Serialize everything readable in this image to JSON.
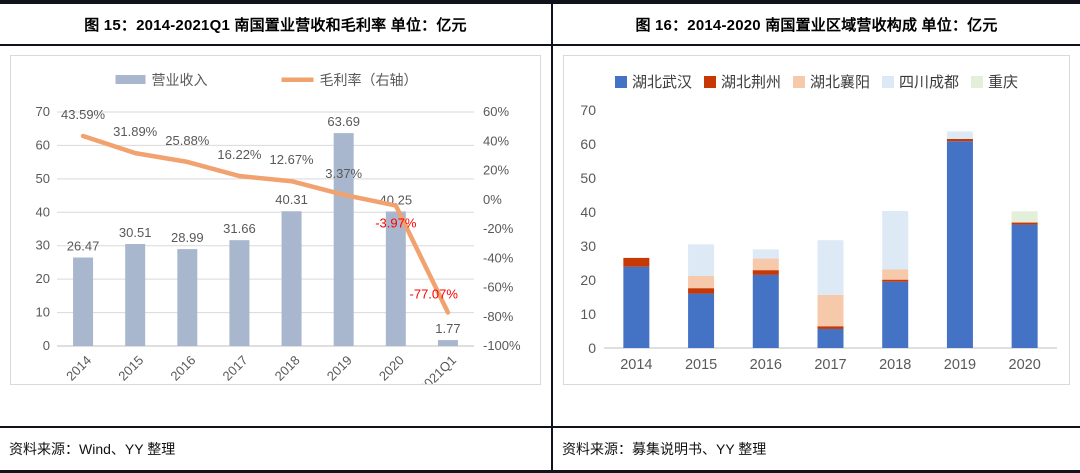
{
  "left_panel": {
    "title": "图 15：2014-2021Q1 南国置业营收和毛利率 单位：亿元",
    "footer": "资料来源：Wind、YY 整理"
  },
  "right_panel": {
    "title": "图 16：2014-2020 南国置业区域营收构成 单位：亿元",
    "footer": "资料来源：募集说明书、YY 整理"
  },
  "colors": {
    "revenue_bar": "#a9b7ce",
    "margin_line": "#f2a26e",
    "negative_label": "#ff0000",
    "axis_text": "#595959",
    "gridline": "#d9d9d9",
    "baseline": "#bfbfbf",
    "frame": "#10131c"
  },
  "chart_data": [
    {
      "type": "bar",
      "title": "2014-2021Q1 南国置业营收和毛利率（亿元）",
      "categories": [
        "2014",
        "2015",
        "2016",
        "2017",
        "2018",
        "2019",
        "2020",
        "2021Q1"
      ],
      "series": [
        {
          "name": "营业收入",
          "kind": "bar",
          "axis": "left",
          "color": "#a9b7ce",
          "values": [
            26.47,
            30.51,
            28.99,
            31.66,
            40.31,
            63.69,
            40.25,
            1.77
          ],
          "labels": [
            "26.47",
            "30.51",
            "28.99",
            "31.66",
            "40.31",
            "63.69",
            "40.25",
            "1.77"
          ]
        },
        {
          "name": "毛利率（右轴）",
          "kind": "line",
          "axis": "right",
          "color": "#f2a26e",
          "values": [
            43.59,
            31.89,
            25.88,
            16.22,
            12.67,
            3.37,
            -3.97,
            -77.07
          ],
          "labels": [
            "43.59%",
            "31.89%",
            "25.88%",
            "16.22%",
            "12.67%",
            "3.37%",
            "-3.97%",
            "-77.07%"
          ],
          "label_colors": [
            "#595959",
            "#595959",
            "#595959",
            "#595959",
            "#595959",
            "#595959",
            "#ff0000",
            "#ff0000"
          ],
          "label_placement": [
            "above",
            "above",
            "above",
            "above",
            "above",
            "above",
            "below",
            "above-left"
          ]
        }
      ],
      "left_axis": {
        "min": 0,
        "max": 70,
        "step": 10,
        "suffix": ""
      },
      "right_axis": {
        "min": -100,
        "max": 60,
        "step": 20,
        "suffix": "%"
      },
      "grid": true,
      "legend_position": "top"
    },
    {
      "type": "bar",
      "subtype": "stacked",
      "title": "2014-2020 南国置业区域营收构成（亿元）",
      "categories": [
        "2014",
        "2015",
        "2016",
        "2017",
        "2018",
        "2019",
        "2020"
      ],
      "series": [
        {
          "name": "湖北武汉",
          "color": "#4472c4",
          "values": [
            23.9,
            16.0,
            21.5,
            5.6,
            19.5,
            60.8,
            36.3
          ]
        },
        {
          "name": "湖北荆州",
          "color": "#c63906",
          "values": [
            2.6,
            1.6,
            1.4,
            0.8,
            0.6,
            0.7,
            0.6
          ]
        },
        {
          "name": "湖北襄阳",
          "color": "#f6c9aa",
          "values": [
            0,
            3.6,
            3.4,
            9.2,
            3.0,
            0,
            0
          ]
        },
        {
          "name": "四川成都",
          "color": "#dee9f6",
          "values": [
            0,
            9.3,
            2.7,
            16.1,
            17.2,
            2.2,
            0
          ]
        },
        {
          "name": "重庆",
          "color": "#e3efd9",
          "values": [
            0,
            0,
            0,
            0,
            0,
            0,
            3.3
          ]
        }
      ],
      "y_axis": {
        "min": 0,
        "max": 70,
        "step": 10
      },
      "grid": false,
      "legend_position": "top"
    }
  ]
}
